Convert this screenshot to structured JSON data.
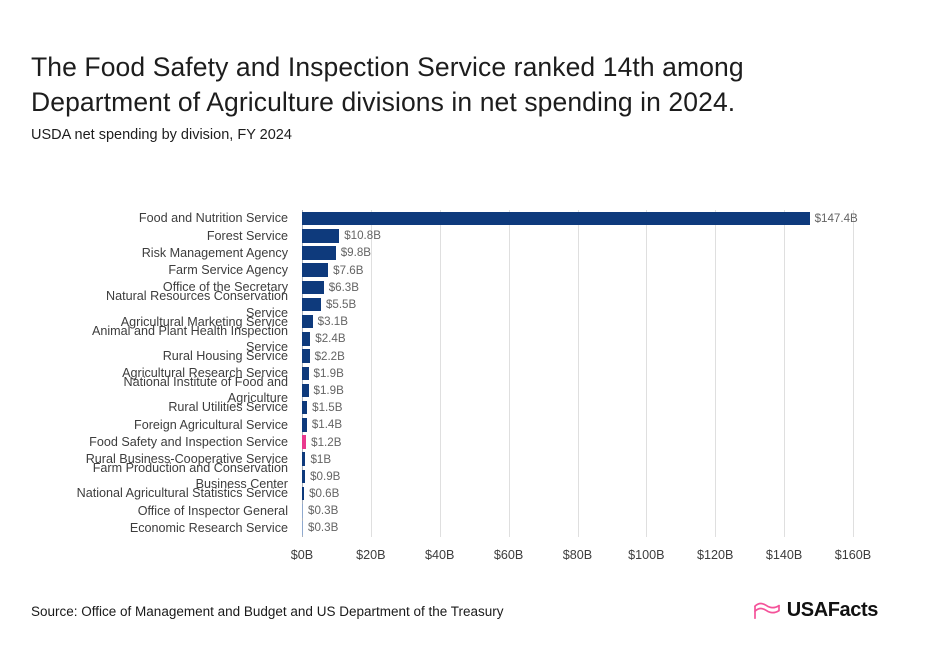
{
  "header": {
    "title": "The Food Safety and Inspection Service ranked 14th among\nDepartment of Agriculture divisions in net spending in 2024.",
    "subtitle": "USDA net spending by division, FY 2024"
  },
  "chart_data": {
    "type": "bar",
    "orientation": "horizontal",
    "title": "USDA net spending by division, FY 2024",
    "categories": [
      "Food and Nutrition Service",
      "Forest Service",
      "Risk Management Agency",
      "Farm Service Agency",
      "Office of the Secretary",
      "Natural Resources Conservation\nService",
      "Agricultural Marketing Service",
      "Animal and Plant Health Inspection\nService",
      "Rural Housing Service",
      "Agricultural Research Service",
      "National Institute of Food and\nAgriculture",
      "Rural Utilities Service",
      "Foreign Agricultural Service",
      "Food Safety and Inspection Service",
      "Rural Business-Cooperative Service",
      "Farm Production and Conservation\nBusiness Center",
      "National Agricultural Statistics Service",
      "Office of Inspector General",
      "Economic Research Service"
    ],
    "values": [
      147.4,
      10.8,
      9.8,
      7.6,
      6.3,
      5.5,
      3.1,
      2.4,
      2.2,
      1.9,
      1.9,
      1.5,
      1.4,
      1.2,
      1.0,
      0.9,
      0.6,
      0.3,
      0.3
    ],
    "value_labels": [
      "$147.4B",
      "$10.8B",
      "$9.8B",
      "$7.6B",
      "$6.3B",
      "$5.5B",
      "$3.1B",
      "$2.4B",
      "$2.2B",
      "$1.9B",
      "$1.9B",
      "$1.5B",
      "$1.4B",
      "$1.2B",
      "$1B",
      "$0.9B",
      "$0.6B",
      "$0.3B",
      "$0.3B"
    ],
    "x_tick_labels": [
      "$0B",
      "$20B",
      "$40B",
      "$60B",
      "$80B",
      "$100B",
      "$120B",
      "$140B",
      "$160B"
    ],
    "x_tick_values": [
      0,
      20,
      40,
      60,
      80,
      100,
      120,
      140,
      160
    ],
    "xlim": [
      0,
      160
    ],
    "grid": true,
    "bar_default_color": "#0e3a7c",
    "bar_highlight_color": "#e9398e",
    "bar_highlight_index": 13,
    "bar_light_color": "#8fa9cf",
    "bar_light_indices": [
      17,
      18
    ]
  },
  "footer": {
    "source": "Source: Office of Management and Budget and US Department of the Treasury",
    "logo_text": "USAFacts",
    "logo_color": "#f4539a"
  }
}
